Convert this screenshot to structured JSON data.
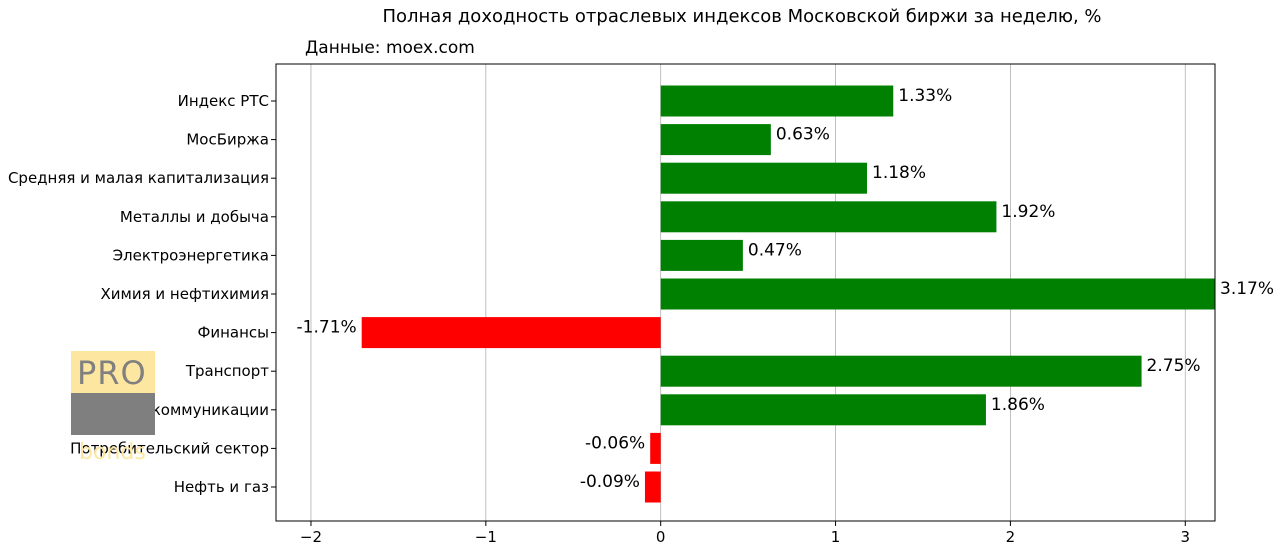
{
  "chart_data": {
    "type": "bar",
    "orientation": "horizontal",
    "title": "Полная доходность отраслевых индексов Московской биржи за неделю, %",
    "subtitle": "Данные: moex.com",
    "categories": [
      "Индекс РТС",
      "МосБиржа",
      "Средняя и малая капитализация",
      "Металлы и добыча",
      "Электроэнергетика",
      "Химия и нефтихимия",
      "Финансы",
      "Транспорт",
      "Телекоммуникации",
      "Потребительский сектор",
      "Нефть и газ"
    ],
    "values": [
      1.33,
      0.63,
      1.18,
      1.92,
      0.47,
      3.17,
      -1.71,
      2.75,
      1.86,
      -0.06,
      -0.09
    ],
    "data_labels": [
      "1.33%",
      "0.63%",
      "1.18%",
      "1.92%",
      "0.47%",
      "3.17%",
      "-1.71%",
      "2.75%",
      "1.86%",
      "-0.06%",
      "-0.09%"
    ],
    "xlim": [
      -2.2,
      3.17
    ],
    "xticks": [
      -2,
      -1,
      0,
      1,
      2,
      3
    ],
    "xtick_labels": [
      "−2",
      "−1",
      "0",
      "1",
      "2",
      "3"
    ],
    "grid": "x",
    "colors": {
      "positive": "#008000",
      "negative": "#ff0000"
    }
  },
  "logo": {
    "line1": "PRO",
    "line2": "bonds"
  }
}
